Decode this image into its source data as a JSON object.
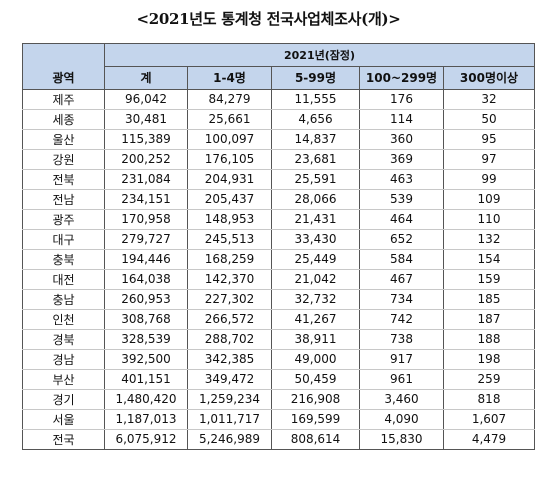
{
  "title": "<2021년도 통계청 전국사업체조사(개)>",
  "table": {
    "group_header": "2021년(잠정)",
    "columns": [
      "광역",
      "계",
      "1-4명",
      "5-99명",
      "100~299명",
      "300명이상"
    ],
    "rows": [
      [
        "제주",
        "96,042",
        "84,279",
        "11,555",
        "176",
        "32"
      ],
      [
        "세종",
        "30,481",
        "25,661",
        "4,656",
        "114",
        "50"
      ],
      [
        "울산",
        "115,389",
        "100,097",
        "14,837",
        "360",
        "95"
      ],
      [
        "강원",
        "200,252",
        "176,105",
        "23,681",
        "369",
        "97"
      ],
      [
        "전북",
        "231,084",
        "204,931",
        "25,591",
        "463",
        "99"
      ],
      [
        "전남",
        "234,151",
        "205,437",
        "28,066",
        "539",
        "109"
      ],
      [
        "광주",
        "170,958",
        "148,953",
        "21,431",
        "464",
        "110"
      ],
      [
        "대구",
        "279,727",
        "245,513",
        "33,430",
        "652",
        "132"
      ],
      [
        "충북",
        "194,446",
        "168,259",
        "25,449",
        "584",
        "154"
      ],
      [
        "대전",
        "164,038",
        "142,370",
        "21,042",
        "467",
        "159"
      ],
      [
        "충남",
        "260,953",
        "227,302",
        "32,732",
        "734",
        "185"
      ],
      [
        "인천",
        "308,768",
        "266,572",
        "41,267",
        "742",
        "187"
      ],
      [
        "경북",
        "328,539",
        "288,702",
        "38,911",
        "738",
        "188"
      ],
      [
        "경남",
        "392,500",
        "342,385",
        "49,000",
        "917",
        "198"
      ],
      [
        "부산",
        "401,151",
        "349,472",
        "50,459",
        "961",
        "259"
      ],
      [
        "경기",
        "1,480,420",
        "1,259,234",
        "216,908",
        "3,460",
        "818"
      ],
      [
        "서울",
        "1,187,013",
        "1,011,717",
        "169,599",
        "4,090",
        "1,607"
      ],
      [
        "전국",
        "6,075,912",
        "5,246,989",
        "808,614",
        "15,830",
        "4,479"
      ]
    ]
  }
}
